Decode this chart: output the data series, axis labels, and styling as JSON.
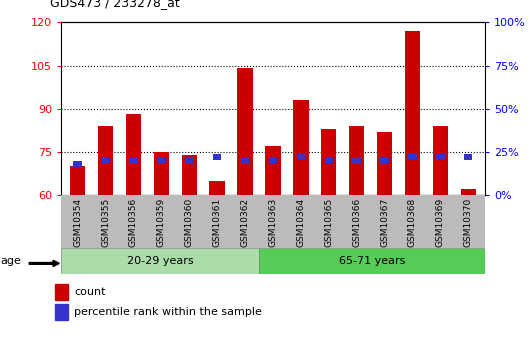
{
  "title": "GDS473 / 233278_at",
  "samples": [
    "GSM10354",
    "GSM10355",
    "GSM10356",
    "GSM10359",
    "GSM10360",
    "GSM10361",
    "GSM10362",
    "GSM10363",
    "GSM10364",
    "GSM10365",
    "GSM10366",
    "GSM10367",
    "GSM10368",
    "GSM10369",
    "GSM10370"
  ],
  "count_values": [
    70,
    84,
    88,
    75,
    74,
    65,
    104,
    77,
    93,
    83,
    84,
    82,
    117,
    84,
    62
  ],
  "percentile_values": [
    18,
    20,
    20,
    20,
    20,
    22,
    20,
    20,
    22,
    20,
    20,
    20,
    22,
    22,
    22
  ],
  "ylim_left": [
    60,
    120
  ],
  "ylim_right": [
    0,
    100
  ],
  "yticks_left": [
    60,
    75,
    90,
    105,
    120
  ],
  "yticks_right": [
    0,
    25,
    50,
    75,
    100
  ],
  "ytick_labels_right": [
    "0%",
    "25%",
    "50%",
    "75%",
    "100%"
  ],
  "bar_color_red": "#cc0000",
  "bar_color_blue": "#3333cc",
  "group1_label": "20-29 years",
  "group2_label": "65-71 years",
  "group1_count": 7,
  "group2_count": 8,
  "group1_bg_color": "#aaddaa",
  "group2_bg_color": "#55cc55",
  "age_label": "age",
  "legend_count": "count",
  "legend_percentile": "percentile rank within the sample",
  "xtick_bg_color": "#bbbbbb",
  "grid_lines": [
    75,
    90,
    105
  ]
}
